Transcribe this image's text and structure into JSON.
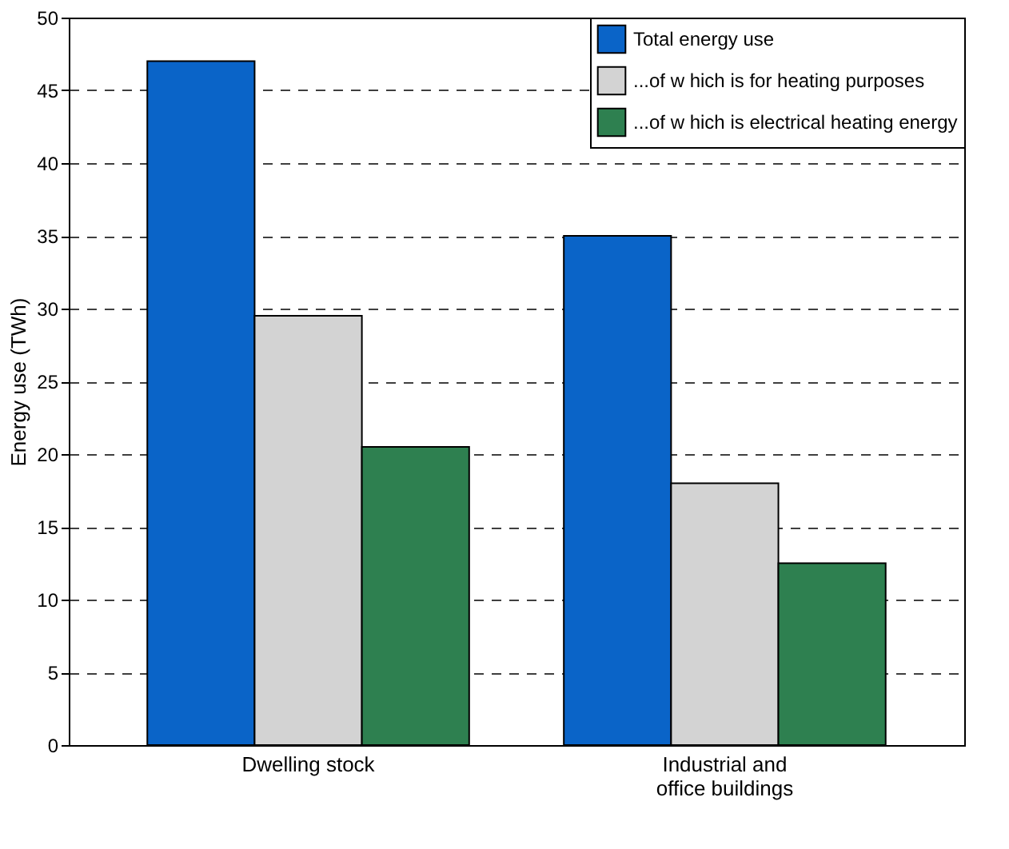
{
  "chart_data": {
    "type": "bar",
    "ylabel": "Energy use (TWh)",
    "categories": [
      "Dwelling stock",
      "Industrial and\noffice buildings"
    ],
    "series": [
      {
        "name": "Total energy use",
        "color": "#0a64c8",
        "values": [
          47,
          35
        ]
      },
      {
        "name": "...of w hich is for heating purposes",
        "color": "#d3d3d3",
        "values": [
          29.5,
          18
        ]
      },
      {
        "name": "...of w hich is electrical heating energy",
        "color": "#2e8050",
        "values": [
          20.5,
          12.5
        ]
      }
    ],
    "ylim": [
      0,
      50
    ],
    "yticks": [
      0,
      5,
      10,
      15,
      20,
      25,
      30,
      35,
      40,
      45,
      50
    ],
    "grid": "y",
    "legend": "top right"
  }
}
